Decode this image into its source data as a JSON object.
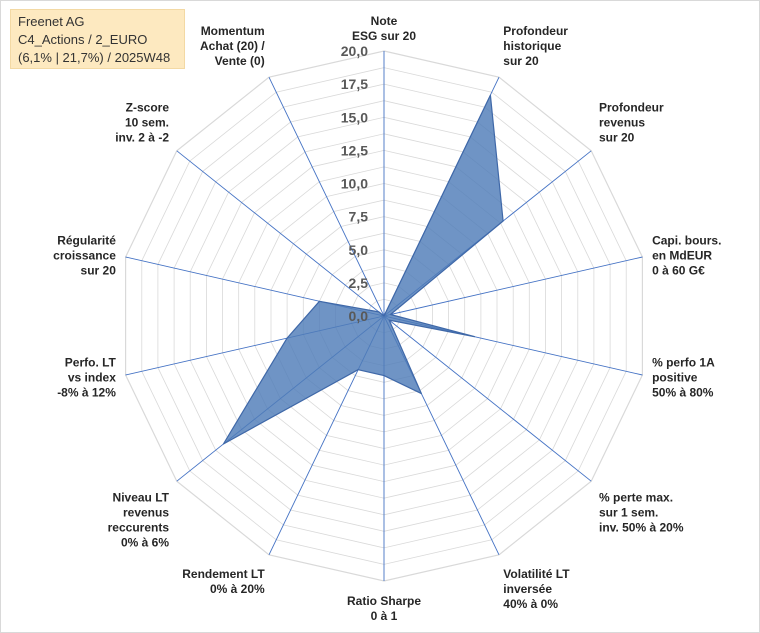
{
  "title": {
    "line1": "Freenet AG",
    "line2": "C4_Actions / 2_EURO",
    "line3": "(6,1% | 21,7%) / 2025W48"
  },
  "colors": {
    "fill": "#4f7cb8",
    "stroke": "#3f68a8",
    "spoke": "#4472c4",
    "grid": "#d9d9d9",
    "title_bg": "#fde9c0"
  },
  "chart_data": {
    "type": "radar",
    "rmin": 0,
    "rmax": 20,
    "tick_step": 2.5,
    "tick_labels": [
      "0,0",
      "2,5",
      "5,0",
      "7,5",
      "10,0",
      "12,5",
      "15,0",
      "17,5",
      "20,0"
    ],
    "axes": [
      {
        "label": [
          "Note",
          "ESG sur 20"
        ],
        "value": 0
      },
      {
        "label": [
          "Profondeur",
          "historique",
          "sur 20"
        ],
        "value": 18.5
      },
      {
        "label": [
          "Profondeur",
          "revenus",
          "sur 20"
        ],
        "value": 11.5
      },
      {
        "label": [
          "Capi. bours.",
          "en MdEUR",
          "0 à 60 G€"
        ],
        "value": 0.5
      },
      {
        "label": [
          "% perfo 1A",
          "positive",
          "50% à 80%"
        ],
        "value": 7
      },
      {
        "label": [
          "% perte max.",
          "sur 1 sem.",
          "inv. 50% à 20%"
        ],
        "value": 0.5
      },
      {
        "label": [
          "Volatilité LT",
          "inversée",
          "40% à 0%"
        ],
        "value": 6.5
      },
      {
        "label": [
          "Ratio Sharpe",
          "0 à 1"
        ],
        "value": 4.5
      },
      {
        "label": [
          "Rendement LT",
          "0% à 20%"
        ],
        "value": 4.5
      },
      {
        "label": [
          "Niveau LT",
          "revenus",
          "reccurents",
          "0% à 6%"
        ],
        "value": 15.5
      },
      {
        "label": [
          "Perfo. LT",
          "vs index",
          "-8% à 12%"
        ],
        "value": 7.5
      },
      {
        "label": [
          "Régularité",
          "croissance",
          "sur 20"
        ],
        "value": 5
      },
      {
        "label": [
          "Z-score",
          "10 sem.",
          "inv. 2 à -2"
        ],
        "value": 0.5
      },
      {
        "label": [
          "Momentum",
          "Achat (20) /",
          "Vente (0)"
        ],
        "value": 0
      }
    ]
  }
}
